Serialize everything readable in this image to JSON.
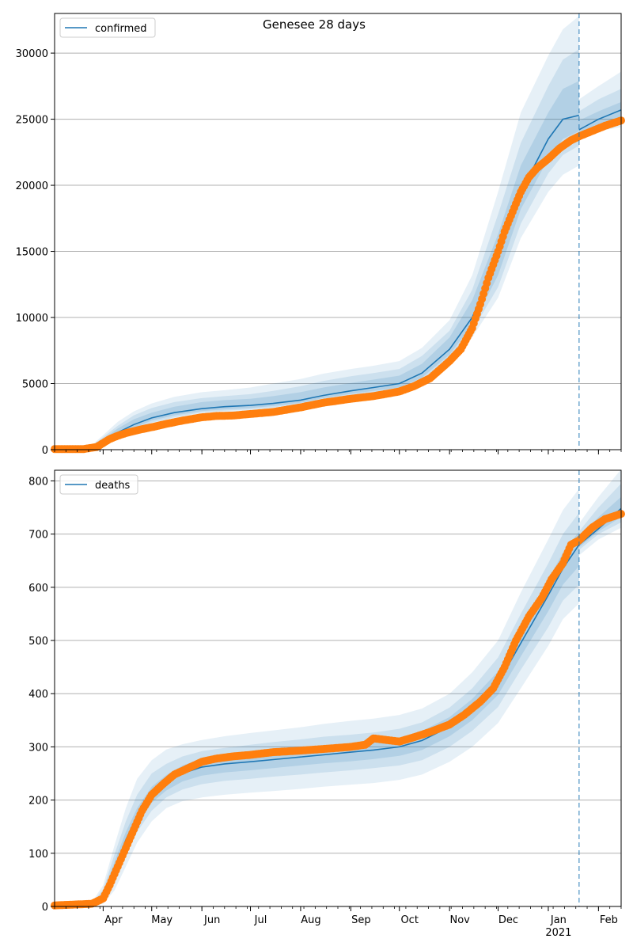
{
  "figure_title": "Genesee 28 days",
  "colors": {
    "model": "#1f77b4",
    "observed": "#ff7f0e",
    "band": "#1f77b4",
    "grid": "#b0b0b0",
    "forecast_line": "#1f77b4"
  },
  "chart_data": [
    {
      "type": "line",
      "panel": "top",
      "legend": "confirmed",
      "legend_position": "top-left",
      "grid": "horizontal",
      "x_tick_labels": [
        "Apr",
        "May",
        "Jun",
        "Jul",
        "Aug",
        "Sep",
        "Oct",
        "Nov",
        "Dec",
        "Jan",
        "Feb"
      ],
      "x_tick_sublabel": "2021",
      "x_range": [
        "2020-03-02",
        "2021-02-15"
      ],
      "forecast_start": "2021-01-20",
      "ylim": [
        0,
        33000
      ],
      "y_ticks": [
        0,
        5000,
        10000,
        15000,
        20000,
        25000,
        30000
      ],
      "model": {
        "dates": [
          "2020-03-02",
          "2020-03-15",
          "2020-03-25",
          "2020-04-01",
          "2020-04-10",
          "2020-04-20",
          "2020-05-01",
          "2020-05-15",
          "2020-06-01",
          "2020-06-15",
          "2020-07-01",
          "2020-07-15",
          "2020-08-01",
          "2020-08-15",
          "2020-09-01",
          "2020-09-15",
          "2020-10-01",
          "2020-10-15",
          "2020-11-01",
          "2020-11-15",
          "2020-12-01",
          "2020-12-15",
          "2021-01-01",
          "2021-01-10",
          "2021-01-20"
        ],
        "values": [
          50,
          60,
          150,
          600,
          1300,
          1900,
          2400,
          2800,
          3100,
          3250,
          3350,
          3500,
          3750,
          4100,
          4450,
          4700,
          5000,
          5800,
          7600,
          10000,
          14500,
          19500,
          23500,
          25000,
          25300
        ],
        "bands": [
          {
            "lower": [
              0,
              0,
              50,
              300,
              800,
              1300,
              1900,
              2300,
              2700,
              2800,
              2950,
              3100,
              3350,
              3650,
              3950,
              4150,
              4400,
              5100,
              6700,
              8500,
              11500,
              16000,
              19500,
              20800,
              21500
            ],
            "upper": [
              100,
              150,
              350,
              1100,
              2100,
              2900,
              3500,
              4000,
              4350,
              4500,
              4700,
              5000,
              5350,
              5750,
              6100,
              6350,
              6700,
              7700,
              9800,
              13200,
              19500,
              25500,
              29800,
              31800,
              32800
            ]
          },
          {
            "lower": [
              0,
              0,
              80,
              400,
              950,
              1500,
              2050,
              2450,
              2820,
              2950,
              3050,
              3200,
              3450,
              3800,
              4100,
              4300,
              4550,
              5300,
              7000,
              9000,
              12300,
              17100,
              20900,
              22300,
              23000
            ],
            "upper": [
              80,
              120,
              280,
              950,
              1800,
              2600,
              3150,
              3600,
              3900,
              4050,
              4200,
              4450,
              4800,
              5200,
              5550,
              5800,
              6100,
              7100,
              9000,
              12100,
              17800,
              23200,
              27500,
              29500,
              30300
            ]
          },
          {
            "lower": [
              10,
              20,
              100,
              480,
              1080,
              1650,
              2200,
              2600,
              2920,
              3050,
              3150,
              3300,
              3550,
              3900,
              4220,
              4450,
              4700,
              5450,
              7200,
              9400,
              13200,
              18200,
              22000,
              23500,
              24100
            ],
            "upper": [
              60,
              100,
              220,
              800,
              1600,
              2300,
              2800,
              3250,
              3600,
              3750,
              3850,
              4050,
              4350,
              4700,
              5050,
              5300,
              5600,
              6500,
              8500,
              11300,
              16300,
              21500,
              25500,
              27300,
              27900
            ]
          }
        ]
      },
      "forecast_band_dates": [
        "2021-01-20",
        "2021-02-01",
        "2021-02-15"
      ],
      "forecast_model": [
        24200,
        25000,
        25700
      ],
      "forecast_bands": [
        {
          "lower": [
            23800,
            24100,
            24400
          ],
          "upper": [
            26500,
            27500,
            28600
          ]
        },
        {
          "lower": [
            23950,
            24300,
            24700
          ],
          "upper": [
            25600,
            26500,
            27300
          ]
        },
        {
          "lower": [
            24050,
            24450,
            24900
          ],
          "upper": [
            24900,
            25600,
            26300
          ]
        }
      ],
      "observed": {
        "dates": [
          "2020-03-02",
          "2020-03-20",
          "2020-03-28",
          "2020-04-01",
          "2020-04-05",
          "2020-04-10",
          "2020-04-15",
          "2020-04-20",
          "2020-04-25",
          "2020-05-01",
          "2020-05-10",
          "2020-05-20",
          "2020-06-01",
          "2020-06-10",
          "2020-06-20",
          "2020-07-01",
          "2020-07-15",
          "2020-08-01",
          "2020-08-15",
          "2020-09-01",
          "2020-09-15",
          "2020-10-01",
          "2020-10-10",
          "2020-10-20",
          "2020-11-01",
          "2020-11-08",
          "2020-11-15",
          "2020-11-20",
          "2020-11-25",
          "2020-12-01",
          "2020-12-05",
          "2020-12-10",
          "2020-12-15",
          "2020-12-20",
          "2020-12-25",
          "2021-01-01",
          "2021-01-08",
          "2021-01-15",
          "2021-01-20",
          "2021-01-28",
          "2021-02-05",
          "2021-02-15"
        ],
        "values": [
          50,
          50,
          200,
          500,
          800,
          1050,
          1250,
          1400,
          1550,
          1700,
          1950,
          2200,
          2450,
          2550,
          2580,
          2700,
          2850,
          3200,
          3550,
          3850,
          4050,
          4400,
          4800,
          5400,
          6700,
          7600,
          9200,
          11000,
          13000,
          15000,
          16500,
          18000,
          19500,
          20600,
          21300,
          22000,
          22800,
          23400,
          23700,
          24100,
          24500,
          24900
        ]
      }
    },
    {
      "type": "line",
      "panel": "bottom",
      "legend": "deaths",
      "legend_position": "top-left",
      "grid": "horizontal",
      "x_tick_labels": [
        "Apr",
        "May",
        "Jun",
        "Jul",
        "Aug",
        "Sep",
        "Oct",
        "Nov",
        "Dec",
        "Jan",
        "Feb"
      ],
      "x_tick_sublabel": "2021",
      "x_range": [
        "2020-03-02",
        "2021-02-15"
      ],
      "forecast_start": "2021-01-20",
      "ylim": [
        0,
        820
      ],
      "y_ticks": [
        0,
        100,
        200,
        300,
        400,
        500,
        600,
        700,
        800
      ],
      "model": {
        "dates": [
          "2020-03-02",
          "2020-03-25",
          "2020-04-01",
          "2020-04-08",
          "2020-04-15",
          "2020-04-22",
          "2020-05-01",
          "2020-05-10",
          "2020-05-20",
          "2020-06-01",
          "2020-06-15",
          "2020-07-01",
          "2020-07-15",
          "2020-08-01",
          "2020-08-15",
          "2020-09-01",
          "2020-09-15",
          "2020-10-01",
          "2020-10-15",
          "2020-11-01",
          "2020-11-15",
          "2020-12-01",
          "2020-12-15",
          "2021-01-01",
          "2021-01-10",
          "2021-01-20"
        ],
        "values": [
          0,
          2,
          20,
          70,
          125,
          170,
          210,
          232,
          250,
          262,
          268,
          272,
          276,
          281,
          285,
          290,
          294,
          300,
          312,
          338,
          370,
          420,
          495,
          585,
          635,
          680
        ],
        "bands": [
          {
            "lower": [
              0,
              0,
              5,
              30,
              75,
              120,
              160,
              185,
              198,
              205,
              210,
              214,
              217,
              221,
              225,
              229,
              232,
              238,
              248,
              272,
              300,
              345,
              410,
              490,
              540,
              570
            ],
            "upper": [
              2,
              8,
              40,
              115,
              185,
              240,
              275,
              295,
              305,
              313,
              320,
              326,
              331,
              337,
              343,
              349,
              353,
              360,
              372,
              400,
              440,
              500,
              590,
              690,
              745,
              785
            ]
          },
          {
            "lower": [
              0,
              0,
              10,
              45,
              95,
              140,
              180,
              205,
              220,
              230,
              236,
              240,
              244,
              248,
              252,
              256,
              260,
              265,
              275,
              300,
              330,
              375,
              445,
              525,
              575,
              605
            ],
            "upper": [
              1,
              6,
              32,
              98,
              160,
              210,
              250,
              268,
              282,
              292,
              298,
              304,
              309,
              314,
              319,
              323,
              327,
              334,
              346,
              374,
              410,
              468,
              550,
              645,
              700,
              740
            ]
          },
          {
            "lower": [
              0,
              1,
              14,
              56,
              110,
              155,
              195,
              218,
              235,
              246,
              252,
              256,
              260,
              265,
              269,
              273,
              277,
              283,
              294,
              320,
              350,
              398,
              470,
              555,
              605,
              640
            ],
            "upper": [
              1,
              4,
              26,
              84,
              140,
              185,
              225,
              247,
              265,
              278,
              284,
              288,
              292,
              297,
              301,
              306,
              310,
              317,
              330,
              356,
              390,
              442,
              520,
              615,
              665,
              705
            ]
          }
        ]
      },
      "forecast_band_dates": [
        "2021-01-20",
        "2021-02-01",
        "2021-02-15"
      ],
      "forecast_model": [
        680,
        710,
        748
      ],
      "forecast_bands": [
        {
          "lower": [
            660,
            690,
            712
          ],
          "upper": [
            720,
            770,
            822
          ]
        },
        {
          "lower": [
            670,
            700,
            722
          ],
          "upper": [
            705,
            750,
            795
          ]
        },
        {
          "lower": [
            675,
            705,
            732
          ],
          "upper": [
            695,
            732,
            770
          ]
        }
      ],
      "observed": {
        "dates": [
          "2020-03-02",
          "2020-03-25",
          "2020-04-01",
          "2020-04-05",
          "2020-04-10",
          "2020-04-15",
          "2020-04-20",
          "2020-04-25",
          "2020-05-01",
          "2020-05-08",
          "2020-05-15",
          "2020-05-25",
          "2020-06-01",
          "2020-06-10",
          "2020-06-20",
          "2020-07-01",
          "2020-07-15",
          "2020-08-01",
          "2020-08-15",
          "2020-09-01",
          "2020-09-10",
          "2020-09-15",
          "2020-10-01",
          "2020-10-10",
          "2020-10-20",
          "2020-11-01",
          "2020-11-10",
          "2020-11-20",
          "2020-11-28",
          "2020-12-05",
          "2020-12-12",
          "2020-12-20",
          "2020-12-28",
          "2021-01-03",
          "2021-01-10",
          "2021-01-15",
          "2021-01-20",
          "2021-01-28",
          "2021-02-05",
          "2021-02-15"
        ],
        "values": [
          2,
          5,
          15,
          40,
          75,
          110,
          145,
          180,
          210,
          230,
          248,
          262,
          272,
          278,
          282,
          285,
          290,
          293,
          296,
          300,
          304,
          316,
          310,
          318,
          328,
          342,
          360,
          385,
          410,
          450,
          500,
          545,
          580,
          615,
          645,
          680,
          688,
          712,
          728,
          738
        ]
      }
    }
  ]
}
